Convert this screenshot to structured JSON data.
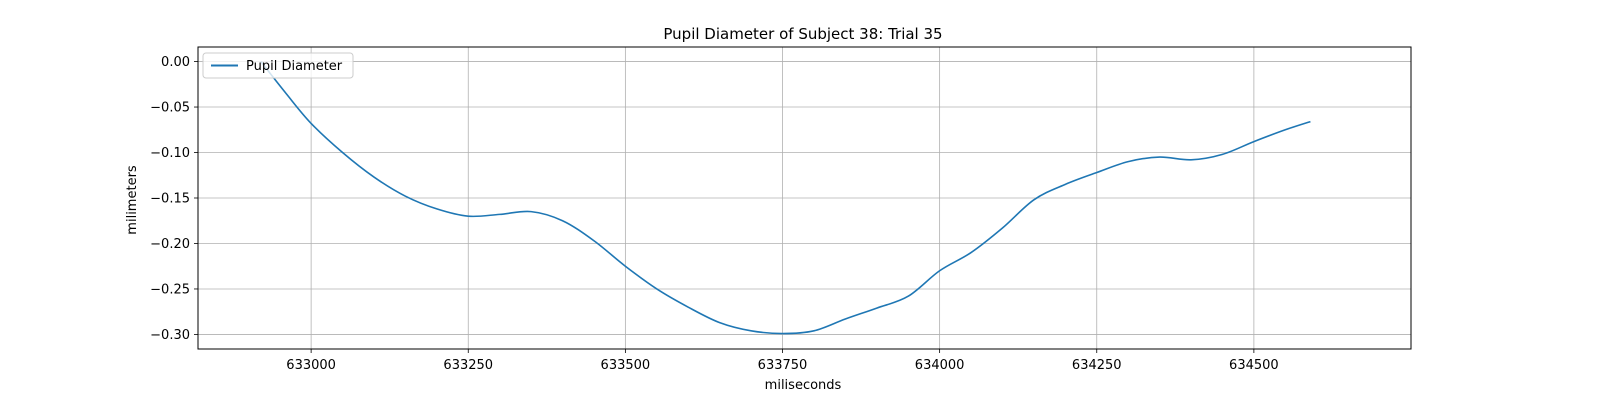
{
  "chart_data": {
    "type": "line",
    "title": "Pupil Diameter of Subject 38: Trial 35",
    "xlabel": "miliseconds",
    "ylabel": "milimeters",
    "xlim": [
      632820,
      634750
    ],
    "ylim": [
      -0.316,
      0.016
    ],
    "xticks": [
      633000,
      633250,
      633500,
      633750,
      634000,
      634250,
      634500
    ],
    "yticks": [
      0.0,
      -0.05,
      -0.1,
      -0.15,
      -0.2,
      -0.25,
      -0.3
    ],
    "ytick_labels": [
      "0.00",
      "−0.05",
      "−0.10",
      "−0.15",
      "−0.20",
      "−0.25",
      "−0.30"
    ],
    "grid": true,
    "legend_position": "top-left",
    "series": [
      {
        "name": "Pupil Diameter",
        "color": "#1f77b4",
        "x": [
          632920,
          632960,
          633000,
          633050,
          633100,
          633150,
          633200,
          633250,
          633300,
          633350,
          633400,
          633450,
          633500,
          633550,
          633600,
          633650,
          633700,
          633750,
          633800,
          633850,
          633900,
          633950,
          634000,
          634050,
          634100,
          634150,
          634200,
          634250,
          634300,
          634350,
          634400,
          634450,
          634500,
          634550,
          634590
        ],
        "y": [
          -0.0,
          -0.035,
          -0.068,
          -0.1,
          -0.127,
          -0.148,
          -0.162,
          -0.17,
          -0.168,
          -0.165,
          -0.175,
          -0.197,
          -0.225,
          -0.25,
          -0.27,
          -0.287,
          -0.296,
          -0.299,
          -0.296,
          -0.283,
          -0.271,
          -0.258,
          -0.23,
          -0.21,
          -0.183,
          -0.152,
          -0.135,
          -0.122,
          -0.11,
          -0.105,
          -0.108,
          -0.102,
          -0.088,
          -0.075,
          -0.066
        ]
      }
    ]
  }
}
